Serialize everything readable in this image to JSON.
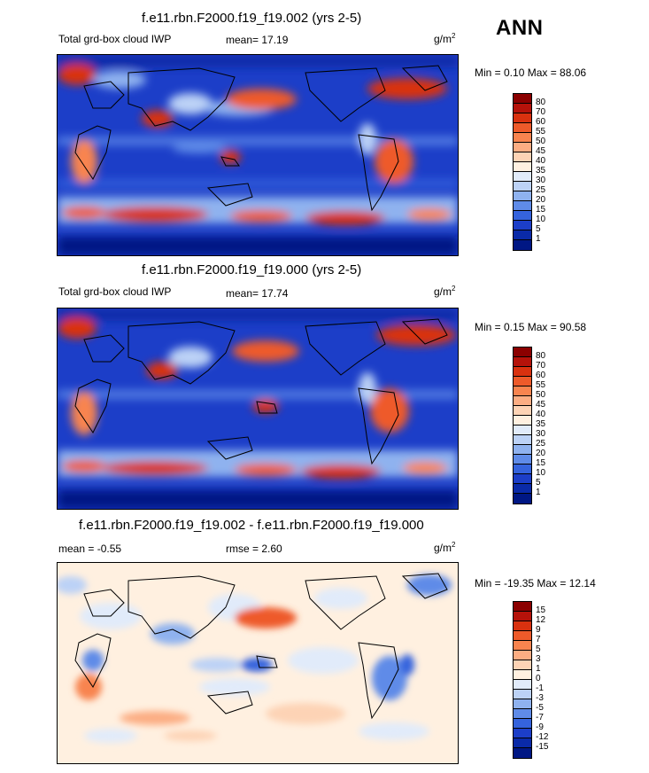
{
  "season": "ANN",
  "units_base": "g/m",
  "units_exp": "2",
  "panels": [
    {
      "title": "f.e11.rbn.F2000.f19_f19.002 (yrs 2-5)",
      "left_label": "Total grd-box cloud IWP",
      "center_label": "mean=  17.19",
      "minmax": "Min =   0.10 Max =  88.06",
      "colorbar": {
        "labels": [
          "80",
          "70",
          "60",
          "55",
          "50",
          "45",
          "40",
          "35",
          "30",
          "25",
          "20",
          "15",
          "10",
          "5",
          "1"
        ],
        "colors": [
          "#8b0000",
          "#b5120a",
          "#d9310f",
          "#ee5a2a",
          "#f8844f",
          "#fcad83",
          "#fdd3b5",
          "#fff0e0",
          "#e1ebfa",
          "#bcd2f6",
          "#8fb2ef",
          "#5f8be8",
          "#3563dd",
          "#1c3ec8",
          "#0a2aa8",
          "#001784"
        ]
      }
    },
    {
      "title": "f.e11.rbn.F2000.f19_f19.000 (yrs 2-5)",
      "left_label": "Total grd-box cloud IWP",
      "center_label": "mean=  17.74",
      "minmax": "Min =   0.15 Max =  90.58",
      "colorbar": {
        "labels": [
          "80",
          "70",
          "60",
          "55",
          "50",
          "45",
          "40",
          "35",
          "30",
          "25",
          "20",
          "15",
          "10",
          "5",
          "1"
        ],
        "colors": [
          "#8b0000",
          "#b5120a",
          "#d9310f",
          "#ee5a2a",
          "#f8844f",
          "#fcad83",
          "#fdd3b5",
          "#fff0e0",
          "#e1ebfa",
          "#bcd2f6",
          "#8fb2ef",
          "#5f8be8",
          "#3563dd",
          "#1c3ec8",
          "#0a2aa8",
          "#001784"
        ]
      }
    },
    {
      "title": "f.e11.rbn.F2000.f19_f19.002 - f.e11.rbn.F2000.f19_f19.000",
      "left_label": "mean =  -0.55",
      "center_label": "rmse =   2.60",
      "minmax": "Min = -19.35 Max =  12.14",
      "colorbar": {
        "labels": [
          "15",
          "12",
          "9",
          "7",
          "5",
          "3",
          "1",
          "0",
          "-1",
          "-3",
          "-5",
          "-7",
          "-9",
          "-12",
          "-15"
        ],
        "colors": [
          "#8b0000",
          "#b5120a",
          "#d9310f",
          "#ee5a2a",
          "#f8844f",
          "#fcad83",
          "#fdd3b5",
          "#fff0e0",
          "#e1ebfa",
          "#bcd2f6",
          "#8fb2ef",
          "#5f8be8",
          "#3563dd",
          "#1c3ec8",
          "#0a2aa8",
          "#001784"
        ]
      }
    }
  ]
}
